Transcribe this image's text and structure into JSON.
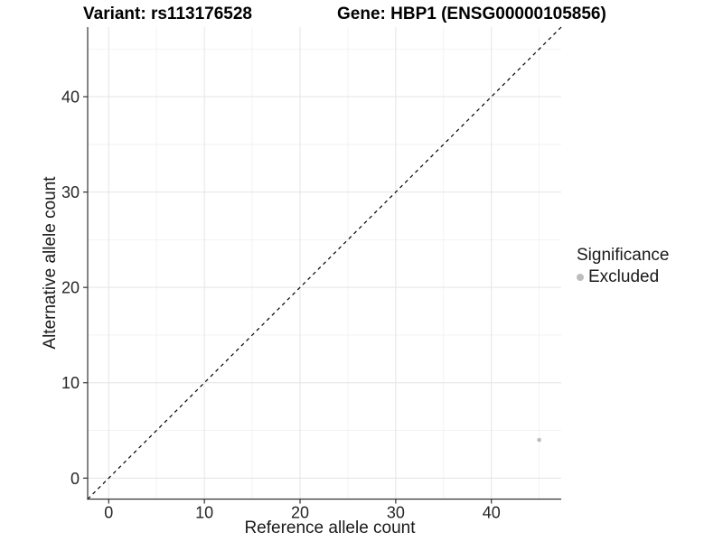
{
  "header": {
    "title_left": "Variant: rs113176528",
    "title_right": "Gene: HBP1 (ENSG00000105856)"
  },
  "chart_data": {
    "type": "scatter",
    "title": "Variant: rs113176528 / Gene: HBP1 (ENSG00000105856)",
    "xlabel": "Reference allele count",
    "ylabel": "Alternative allele count",
    "xlim": [
      -2.2,
      47.3
    ],
    "ylim": [
      -2.2,
      47.3
    ],
    "x_ticks": [
      0,
      10,
      20,
      30,
      40
    ],
    "y_ticks": [
      0,
      10,
      20,
      30,
      40
    ],
    "x_minor_ticks": [
      5,
      15,
      25,
      35,
      45
    ],
    "y_minor_ticks": [
      5,
      15,
      25,
      35,
      45
    ],
    "grid": true,
    "reference_line": {
      "equation": "y = x",
      "style": "dashed",
      "color": "#000000"
    },
    "series": [
      {
        "name": "Excluded",
        "color": "#bdbdbd",
        "points": [
          {
            "x": 45,
            "y": 4
          }
        ]
      }
    ],
    "legend": {
      "title": "Significance",
      "position": "right",
      "entries": [
        {
          "label": "Excluded",
          "color": "#bdbdbd"
        }
      ]
    }
  },
  "colors": {
    "background": "#ffffff",
    "grid_major": "#e4e4e4",
    "grid_minor": "#f0f0f0",
    "axis_line": "#333333",
    "tick_label": "#262626",
    "point": "#bdbdbd"
  }
}
